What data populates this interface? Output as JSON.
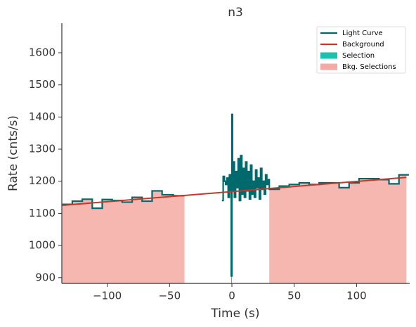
{
  "chart_data": {
    "type": "line",
    "title": "n3",
    "xlabel": "Time (s)",
    "ylabel": "Rate (cnts/s)",
    "xlim": [
      -136.4,
      142.6
    ],
    "ylim": [
      882,
      1692
    ],
    "xticks": [
      {
        "value": -100,
        "label": "−100"
      },
      {
        "value": -50,
        "label": "−50"
      },
      0,
      50,
      100
    ],
    "yticks": [
      900,
      1000,
      1100,
      1200,
      1300,
      1400,
      1500,
      1600
    ],
    "legend": "upper right",
    "series": [
      {
        "name": "Light Curve",
        "color": "#00696b",
        "step": true,
        "x": [
          -136,
          -128,
          -120,
          -112,
          -104,
          -96,
          -88,
          -80,
          -72,
          -64,
          -56,
          -47,
          -38,
          -8,
          -7,
          -6,
          -5,
          -4,
          -3,
          -2,
          -1,
          -0.5,
          0,
          0.5,
          1,
          2,
          3,
          4,
          5,
          6,
          7,
          8,
          9,
          10,
          11,
          12,
          13,
          14,
          15,
          16,
          17,
          18,
          19,
          20,
          21,
          22,
          23,
          24,
          25,
          26,
          27,
          28,
          29,
          30,
          38,
          46,
          54,
          62,
          70,
          78,
          86,
          94,
          102,
          110,
          118,
          126,
          134,
          142
        ],
        "values": [
          1128,
          1138,
          1144,
          1116,
          1143,
          1140,
          1135,
          1150,
          1138,
          1170,
          1158,
          1155,
          null,
          1140,
          1215,
          1200,
          1190,
          1210,
          1150,
          1220,
          1170,
          905,
          1408,
          1170,
          1260,
          1150,
          1230,
          1180,
          1270,
          1140,
          1280,
          1160,
          1240,
          1150,
          1260,
          1170,
          1230,
          1145,
          1250,
          1160,
          1200,
          1150,
          1235,
          1180,
          1210,
          1145,
          1240,
          1175,
          1200,
          1160,
          1220,
          1190,
          1205,
          1175,
          1185,
          1190,
          1195,
          1190,
          1195,
          1195,
          1180,
          1195,
          1208,
          1208,
          1205,
          1192,
          1220,
          1220
        ]
      },
      {
        "name": "Background",
        "color": "#c0392b",
        "x": [
          -136,
          140
        ],
        "values": [
          1125,
          1212
        ]
      }
    ],
    "selections": [
      {
        "name": "Selection",
        "color": "#1fbfb0",
        "ranges": [
          [
            -0.5,
            0
          ]
        ]
      },
      {
        "name": "Bkg. Selections",
        "color": "#f4aaa3",
        "ranges": [
          [
            -136,
            -38
          ],
          [
            30,
            140
          ]
        ]
      }
    ]
  }
}
